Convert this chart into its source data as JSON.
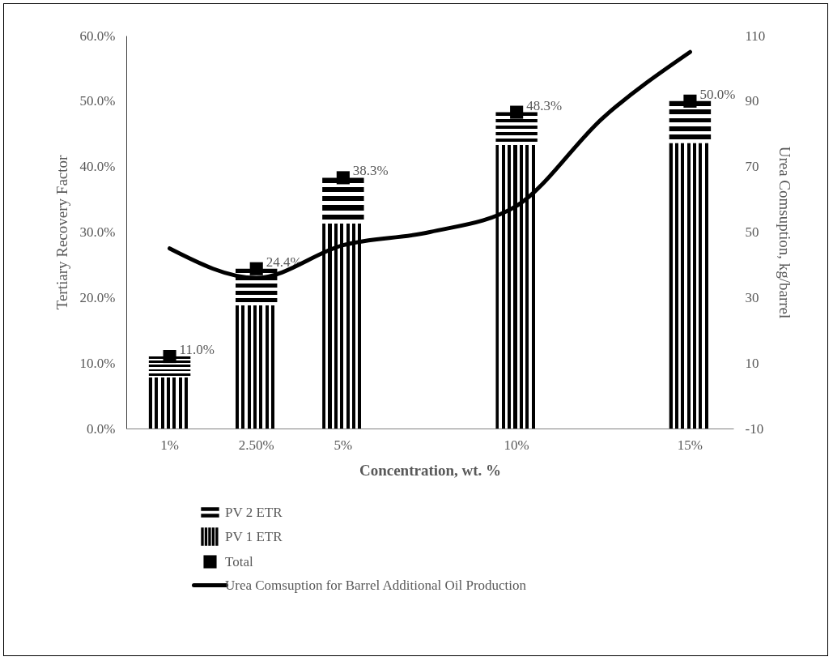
{
  "chart_data": {
    "type": "bar",
    "stacked": true,
    "xlabel": "Concentration, wt. %",
    "ylabel": "Tertiary Recovery Factor",
    "y2label": "Urea Comsuption, kg/barrel",
    "categories": [
      "1%",
      "2.50%",
      "5%",
      null,
      "10%",
      null,
      "15%"
    ],
    "ylim": [
      0,
      60
    ],
    "yticks": [
      {
        "value": 0,
        "label": "0.0%"
      },
      {
        "value": 10,
        "label": "10.0%"
      },
      {
        "value": 20,
        "label": "20.0%"
      },
      {
        "value": 30,
        "label": "30.0%"
      },
      {
        "value": 40,
        "label": "40.0%"
      },
      {
        "value": 50,
        "label": "50.0%"
      },
      {
        "value": 60,
        "label": "60.0%"
      }
    ],
    "y2lim": [
      -10,
      110
    ],
    "y2ticks": [
      -10,
      10,
      30,
      50,
      70,
      90,
      110
    ],
    "legend": "bottom",
    "grid": false,
    "series": [
      {
        "name": "PV 1 ETR",
        "type": "bar",
        "color": "#000000",
        "values": [
          7.8,
          18.8,
          31.3,
          null,
          43.3,
          null,
          43.6
        ]
      },
      {
        "name": "PV 2 ETR",
        "type": "bar",
        "color": "#000000",
        "values": [
          3.2,
          5.6,
          7.0,
          null,
          5.0,
          null,
          6.4
        ]
      },
      {
        "name": "Total",
        "type": "scatter",
        "marker": "square",
        "color": "#000000",
        "values": [
          11.0,
          24.4,
          38.3,
          null,
          48.3,
          null,
          50.0
        ],
        "value_labels": [
          "11.0%",
          "24.4%",
          "38.3%",
          null,
          "48.3%",
          null,
          "50.0%"
        ]
      },
      {
        "name": "Urea Comsuption for Barrel Additional Oil Production",
        "type": "line",
        "axis": "y2",
        "marker": "none",
        "line_style": "solid",
        "color": "#000000",
        "values": [
          45,
          36,
          46,
          50,
          58,
          85,
          105
        ]
      }
    ]
  }
}
